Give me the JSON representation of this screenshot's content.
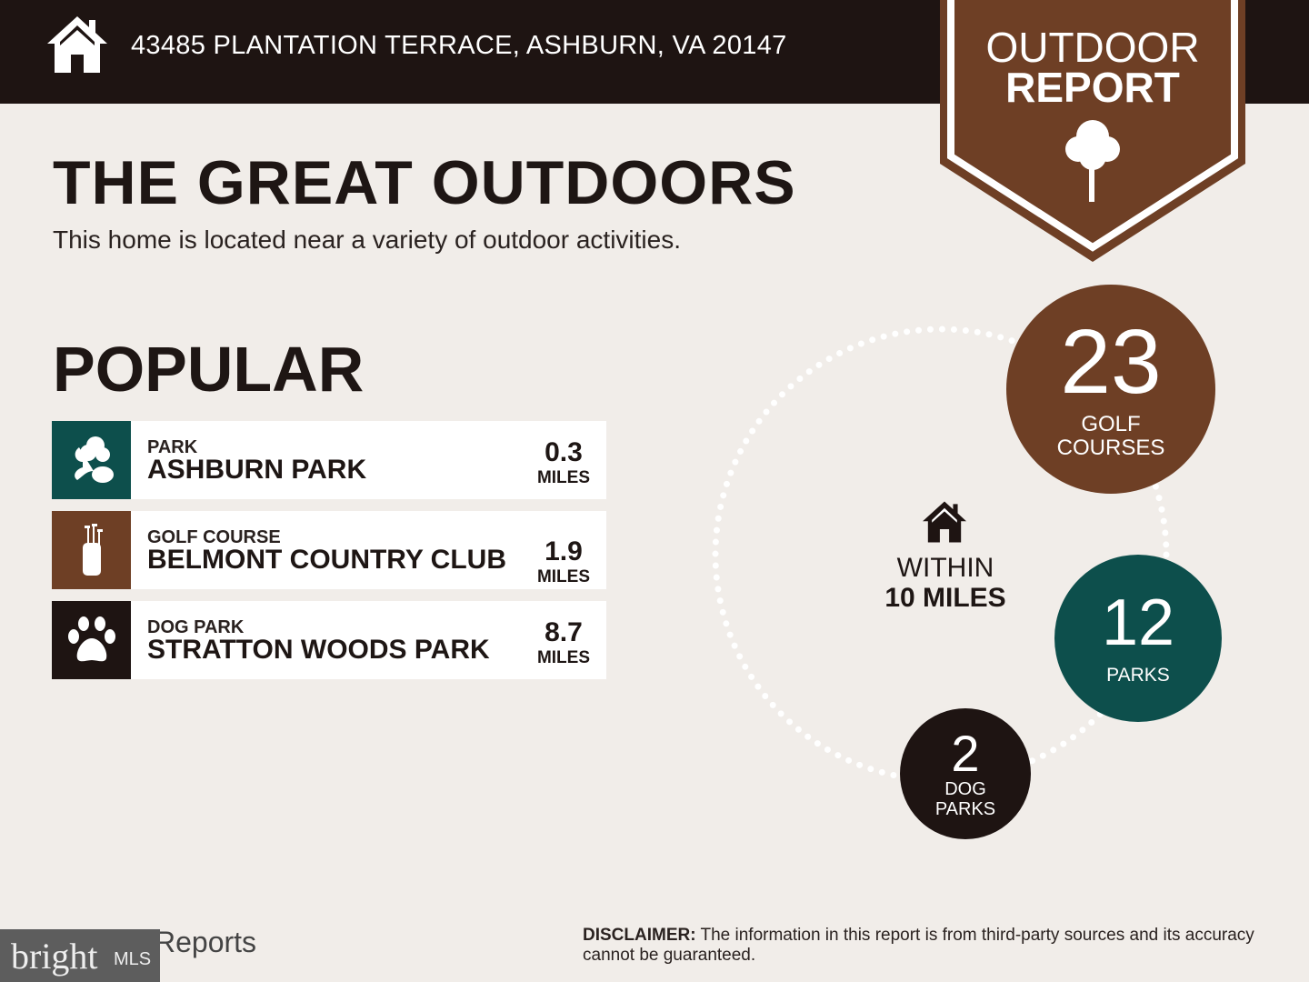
{
  "header": {
    "address": "43485 PLANTATION TERRACE, ASHBURN, VA 20147",
    "badge_line1": "OUTDOOR",
    "badge_line2": "REPORT"
  },
  "title": "THE GREAT OUTDOORS",
  "subtitle": "This home is located near a variety of outdoor activities.",
  "popular": {
    "heading": "POPULAR",
    "items": [
      {
        "category": "PARK",
        "name": "ASHBURN PARK",
        "distance": "0.3",
        "unit": "MILES",
        "icon": "tree-park-icon",
        "color": "#0d4f4c"
      },
      {
        "category": "GOLF COURSE",
        "name": "BELMONT COUNTRY CLUB",
        "distance": "1.9",
        "unit": "MILES",
        "icon": "golf-bag-icon",
        "color": "#6e3f25"
      },
      {
        "category": "DOG PARK",
        "name": "STRATTON WOODS PARK",
        "distance": "8.7",
        "unit": "MILES",
        "icon": "paw-icon",
        "color": "#1e1412"
      }
    ]
  },
  "summary": {
    "within_line1": "WITHIN",
    "within_line2": "10 MILES",
    "golf": {
      "count": "23",
      "label1": "GOLF",
      "label2": "COURSES",
      "color": "#6e3f25"
    },
    "parks": {
      "count": "12",
      "label1": "PARKS",
      "color": "#0d4f4c"
    },
    "dog": {
      "count": "2",
      "label1": "DOG",
      "label2": "PARKS",
      "color": "#1e1412"
    }
  },
  "footer": {
    "brand": "bright",
    "brand_suffix": "MLS",
    "reports": "Reports",
    "disclaimer_label": "DISCLAIMER:",
    "disclaimer": " The information in this report is from third-party sources and its accuracy cannot be guaranteed."
  },
  "colors": {
    "dark": "#1e1412",
    "brown": "#6e3f25",
    "teal": "#0d4f4c",
    "background": "#f1ede9"
  }
}
